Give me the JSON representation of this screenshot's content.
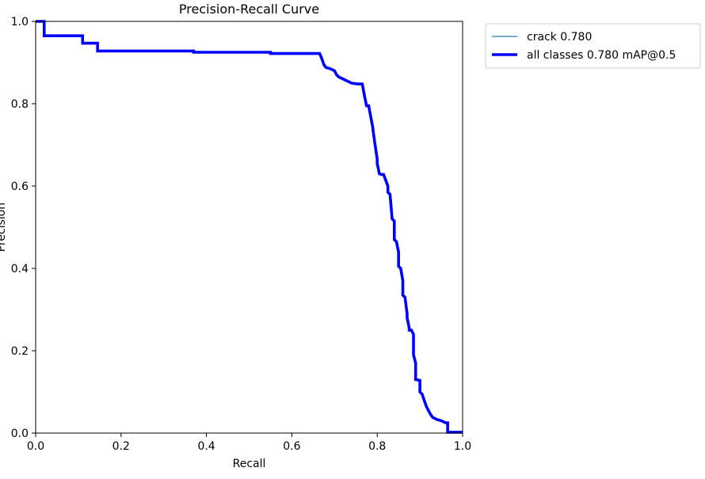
{
  "chart_data": {
    "type": "line",
    "title": "Precision-Recall Curve",
    "xlabel": "Recall",
    "ylabel": "Precision",
    "xlim": [
      0,
      1
    ],
    "ylim": [
      0,
      1
    ],
    "xticks": [
      "0.0",
      "0.2",
      "0.4",
      "0.6",
      "0.8",
      "1.0"
    ],
    "yticks": [
      "0.0",
      "0.2",
      "0.4",
      "0.6",
      "0.8",
      "1.0"
    ],
    "grid": false,
    "legend": "outside-top-right",
    "series": [
      {
        "name": "crack 0.780",
        "color": "#1f77b4",
        "linewidth": "thin",
        "x": [
          0.0,
          0.02,
          0.02,
          0.11,
          0.11,
          0.145,
          0.145,
          0.37,
          0.37,
          0.55,
          0.55,
          0.665,
          0.67,
          0.675,
          0.68,
          0.69,
          0.7,
          0.705,
          0.71,
          0.72,
          0.73,
          0.74,
          0.755,
          0.765,
          0.77,
          0.775,
          0.78,
          0.79,
          0.79,
          0.795,
          0.8,
          0.8,
          0.805,
          0.81,
          0.815,
          0.825,
          0.825,
          0.83,
          0.835,
          0.84,
          0.84,
          0.845,
          0.85,
          0.85,
          0.855,
          0.86,
          0.86,
          0.865,
          0.87,
          0.87,
          0.875,
          0.875,
          0.88,
          0.885,
          0.885,
          0.89,
          0.89,
          0.9,
          0.9,
          0.905,
          0.91,
          0.915,
          0.92,
          0.925,
          0.93,
          0.94,
          0.95,
          0.96,
          0.965,
          0.965,
          1.0
        ],
        "y": [
          1.0,
          1.0,
          0.965,
          0.965,
          0.947,
          0.947,
          0.928,
          0.928,
          0.925,
          0.925,
          0.922,
          0.922,
          0.91,
          0.895,
          0.888,
          0.885,
          0.88,
          0.87,
          0.865,
          0.86,
          0.855,
          0.85,
          0.848,
          0.848,
          0.82,
          0.795,
          0.795,
          0.74,
          0.737,
          0.7,
          0.665,
          0.655,
          0.63,
          0.628,
          0.628,
          0.6,
          0.585,
          0.58,
          0.52,
          0.515,
          0.47,
          0.465,
          0.44,
          0.405,
          0.4,
          0.37,
          0.335,
          0.33,
          0.29,
          0.28,
          0.255,
          0.25,
          0.25,
          0.24,
          0.19,
          0.17,
          0.13,
          0.128,
          0.1,
          0.095,
          0.08,
          0.065,
          0.055,
          0.045,
          0.038,
          0.033,
          0.03,
          0.025,
          0.025,
          0.002,
          0.002
        ]
      },
      {
        "name": "all classes 0.780 mAP@0.5",
        "color": "#0000ff",
        "linewidth": "thick",
        "x": [
          0.0,
          0.02,
          0.02,
          0.11,
          0.11,
          0.145,
          0.145,
          0.37,
          0.37,
          0.55,
          0.55,
          0.665,
          0.67,
          0.675,
          0.68,
          0.69,
          0.7,
          0.705,
          0.71,
          0.72,
          0.73,
          0.74,
          0.755,
          0.765,
          0.77,
          0.775,
          0.78,
          0.79,
          0.79,
          0.795,
          0.8,
          0.8,
          0.805,
          0.81,
          0.815,
          0.825,
          0.825,
          0.83,
          0.835,
          0.84,
          0.84,
          0.845,
          0.85,
          0.85,
          0.855,
          0.86,
          0.86,
          0.865,
          0.87,
          0.87,
          0.875,
          0.875,
          0.88,
          0.885,
          0.885,
          0.89,
          0.89,
          0.9,
          0.9,
          0.905,
          0.91,
          0.915,
          0.92,
          0.925,
          0.93,
          0.94,
          0.95,
          0.96,
          0.965,
          0.965,
          1.0
        ],
        "y": [
          1.0,
          1.0,
          0.965,
          0.965,
          0.947,
          0.947,
          0.928,
          0.928,
          0.925,
          0.925,
          0.922,
          0.922,
          0.91,
          0.895,
          0.888,
          0.885,
          0.88,
          0.87,
          0.865,
          0.86,
          0.855,
          0.85,
          0.848,
          0.848,
          0.82,
          0.795,
          0.795,
          0.74,
          0.737,
          0.7,
          0.665,
          0.655,
          0.63,
          0.628,
          0.628,
          0.6,
          0.585,
          0.58,
          0.52,
          0.515,
          0.47,
          0.465,
          0.44,
          0.405,
          0.4,
          0.37,
          0.335,
          0.33,
          0.29,
          0.28,
          0.255,
          0.25,
          0.25,
          0.24,
          0.19,
          0.17,
          0.13,
          0.128,
          0.1,
          0.095,
          0.08,
          0.065,
          0.055,
          0.045,
          0.038,
          0.033,
          0.03,
          0.025,
          0.025,
          0.002,
          0.002
        ]
      }
    ]
  }
}
